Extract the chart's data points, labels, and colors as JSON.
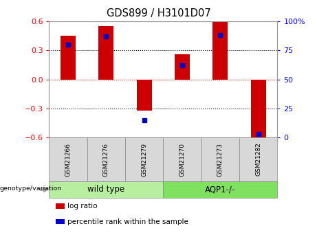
{
  "title": "GDS899 / H3101D07",
  "samples": [
    "GSM21266",
    "GSM21276",
    "GSM21279",
    "GSM21270",
    "GSM21273",
    "GSM21282"
  ],
  "log_ratio": [
    0.45,
    0.55,
    -0.32,
    0.26,
    0.59,
    -0.6
  ],
  "percentile_rank": [
    80,
    87,
    15,
    62,
    88,
    3
  ],
  "groups": [
    {
      "label": "wild type",
      "indices": [
        0,
        1,
        2
      ],
      "color": "#b8eea0"
    },
    {
      "label": "AQP1-/-",
      "indices": [
        3,
        4,
        5
      ],
      "color": "#80e060"
    }
  ],
  "ylim_left": [
    -0.6,
    0.6
  ],
  "ylim_right": [
    0,
    100
  ],
  "yticks_left": [
    -0.6,
    -0.3,
    0.0,
    0.3,
    0.6
  ],
  "yticks_right": [
    0,
    25,
    50,
    75,
    100
  ],
  "bar_color": "#cc0000",
  "dot_color": "#0000cc",
  "grid_lines_black": [
    -0.3,
    0.3
  ],
  "grid_line_red": 0.0,
  "bg_color": "#ffffff",
  "tick_box_color": "#d8d8d8",
  "genotype_label": "genotype/variation",
  "legend_items": [
    {
      "color": "#cc0000",
      "label": "log ratio"
    },
    {
      "color": "#0000cc",
      "label": "percentile rank within the sample"
    }
  ],
  "bar_width": 0.4
}
